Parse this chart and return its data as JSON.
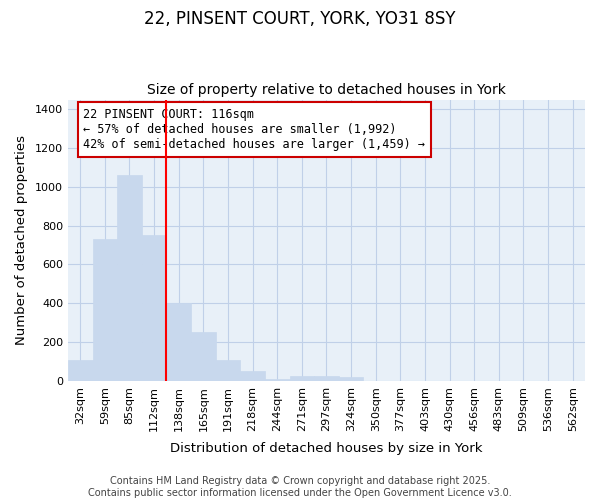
{
  "title_line1": "22, PINSENT COURT, YORK, YO31 8SY",
  "title_line2": "Size of property relative to detached houses in York",
  "xlabel": "Distribution of detached houses by size in York",
  "ylabel": "Number of detached properties",
  "categories": [
    "32sqm",
    "59sqm",
    "85sqm",
    "112sqm",
    "138sqm",
    "165sqm",
    "191sqm",
    "218sqm",
    "244sqm",
    "271sqm",
    "297sqm",
    "324sqm",
    "350sqm",
    "377sqm",
    "403sqm",
    "430sqm",
    "456sqm",
    "483sqm",
    "509sqm",
    "536sqm",
    "562sqm"
  ],
  "values": [
    110,
    730,
    1060,
    750,
    400,
    250,
    110,
    50,
    10,
    25,
    25,
    20,
    0,
    0,
    0,
    0,
    0,
    0,
    0,
    0,
    0
  ],
  "bar_color": "#c8d8ed",
  "bar_edge_color": "#c8d8ed",
  "grid_color": "#c0d0e8",
  "background_color": "#ffffff",
  "axes_bg_color": "#e8f0f8",
  "red_line_x": 3.5,
  "annotation_text": "22 PINSENT COURT: 116sqm\n← 57% of detached houses are smaller (1,992)\n42% of semi-detached houses are larger (1,459) →",
  "annotation_box_facecolor": "white",
  "annotation_box_edgecolor": "#cc0000",
  "ylim": [
    0,
    1450
  ],
  "yticks": [
    0,
    200,
    400,
    600,
    800,
    1000,
    1200,
    1400
  ],
  "footer_line1": "Contains HM Land Registry data © Crown copyright and database right 2025.",
  "footer_line2": "Contains public sector information licensed under the Open Government Licence v3.0.",
  "title_fontsize": 12,
  "subtitle_fontsize": 10,
  "axis_label_fontsize": 9.5,
  "tick_fontsize": 8,
  "annotation_fontsize": 8.5,
  "footer_fontsize": 7
}
